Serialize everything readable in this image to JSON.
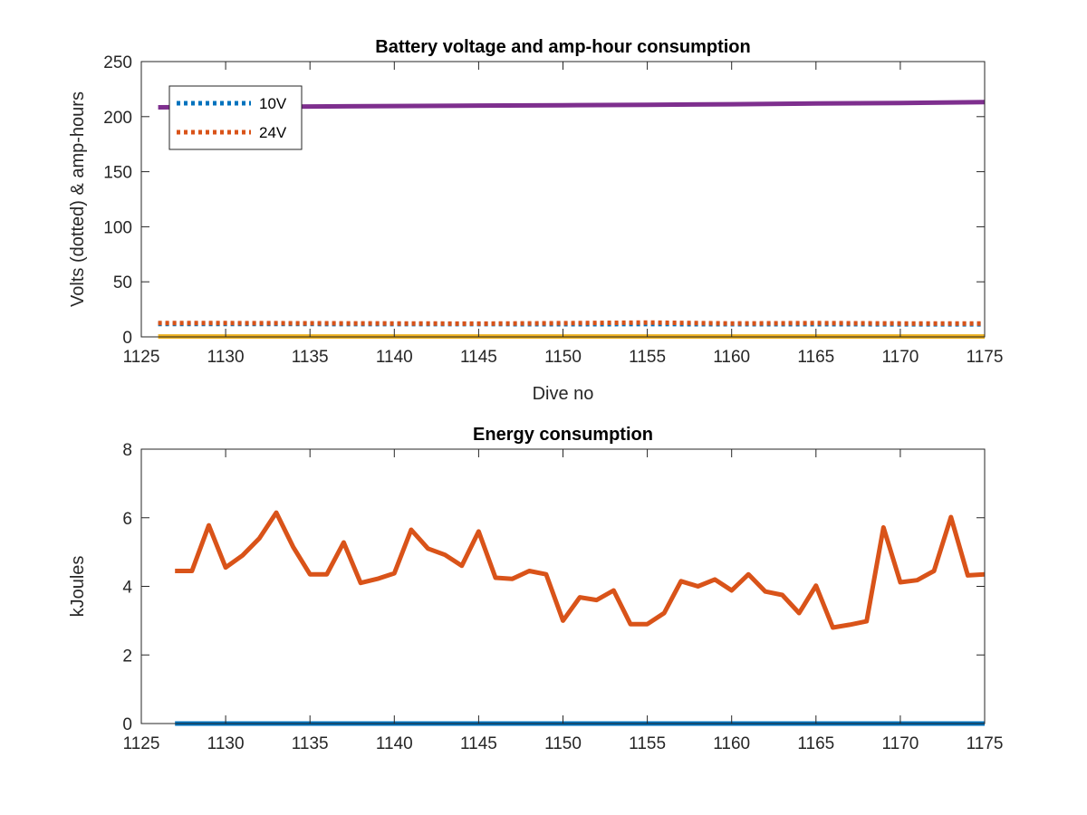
{
  "chart_data": [
    {
      "type": "line",
      "title": "Battery voltage and amp-hour consumption",
      "xlabel": "Dive no",
      "ylabel": "Volts (dotted) & amp-hours",
      "xlim": [
        1125,
        1175
      ],
      "ylim": [
        0,
        250
      ],
      "xticks": [
        1125,
        1130,
        1135,
        1140,
        1145,
        1150,
        1155,
        1160,
        1165,
        1170,
        1175
      ],
      "yticks": [
        0,
        50,
        100,
        150,
        200,
        250
      ],
      "grid": false,
      "legend_position": "top-left",
      "series": [
        {
          "name": "10V",
          "style": "dotted",
          "color": "#0072BD",
          "x": [
            1126,
            1135,
            1140,
            1145,
            1150,
            1155,
            1160,
            1165,
            1170,
            1175
          ],
          "values": [
            11.8,
            11.7,
            11.6,
            11.6,
            11.5,
            11.6,
            11.5,
            11.5,
            11.4,
            11.4
          ]
        },
        {
          "name": "24V",
          "style": "dotted",
          "color": "#D95319",
          "x": [
            1126,
            1130,
            1135,
            1140,
            1145,
            1150,
            1155,
            1160,
            1165,
            1170,
            1175
          ],
          "values": [
            12.5,
            12.5,
            12.3,
            12.2,
            12.0,
            12.4,
            13.0,
            12.2,
            12.5,
            12.2,
            12.2
          ]
        },
        {
          "style": "solid",
          "color": "#EDB120",
          "x": [
            1126,
            1175
          ],
          "values": [
            0.3,
            0.3
          ]
        },
        {
          "style": "solid",
          "color": "#7E2F8E",
          "x": [
            1126,
            1130,
            1135,
            1140,
            1145,
            1150,
            1155,
            1160,
            1165,
            1170,
            1175
          ],
          "values": [
            208.5,
            208.8,
            209.2,
            209.6,
            210.0,
            210.4,
            210.8,
            211.3,
            211.9,
            212.4,
            213.2
          ]
        }
      ]
    },
    {
      "type": "line",
      "title": "Energy consumption",
      "xlabel": "",
      "ylabel": "kJoules",
      "xlim": [
        1125,
        1175
      ],
      "ylim": [
        0,
        8
      ],
      "xticks": [
        1125,
        1130,
        1135,
        1140,
        1145,
        1150,
        1155,
        1160,
        1165,
        1170,
        1175
      ],
      "yticks": [
        0,
        2,
        4,
        6,
        8
      ],
      "grid": false,
      "series": [
        {
          "style": "solid",
          "color": "#0072BD",
          "x": [
            1127,
            1175
          ],
          "values": [
            0.0,
            0.0
          ]
        },
        {
          "style": "solid",
          "color": "#D95319",
          "x": [
            1127,
            1128,
            1129,
            1130,
            1131,
            1132,
            1133,
            1134,
            1135,
            1136,
            1137,
            1138,
            1139,
            1140,
            1141,
            1142,
            1143,
            1144,
            1145,
            1146,
            1147,
            1148,
            1149,
            1150,
            1151,
            1152,
            1153,
            1154,
            1155,
            1156,
            1157,
            1158,
            1159,
            1160,
            1161,
            1162,
            1163,
            1164,
            1165,
            1166,
            1167,
            1168,
            1169,
            1170,
            1171,
            1172,
            1173,
            1174,
            1175
          ],
          "values": [
            4.45,
            4.45,
            5.78,
            4.55,
            4.9,
            5.4,
            6.15,
            5.15,
            4.35,
            4.35,
            5.28,
            4.1,
            4.22,
            4.38,
            5.65,
            5.1,
            4.92,
            4.6,
            5.6,
            4.25,
            4.22,
            4.45,
            4.35,
            3.0,
            3.68,
            3.6,
            3.88,
            2.9,
            2.9,
            3.22,
            4.15,
            4.0,
            4.2,
            3.88,
            4.35,
            3.85,
            3.75,
            3.22,
            4.02,
            2.8,
            2.88,
            2.98,
            5.72,
            4.12,
            4.18,
            4.45,
            6.02,
            4.32,
            4.35
          ]
        }
      ]
    }
  ]
}
